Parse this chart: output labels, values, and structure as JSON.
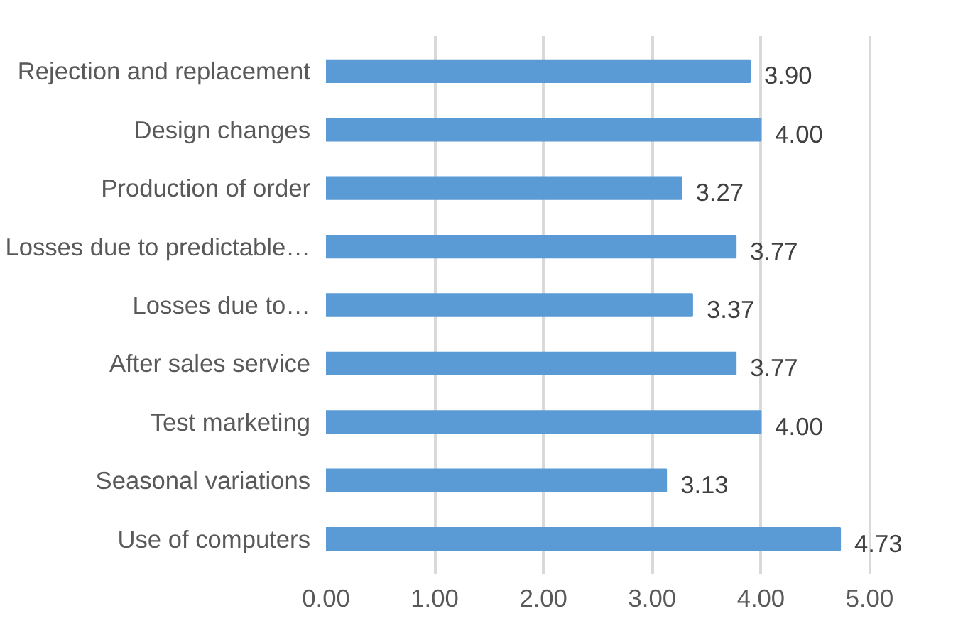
{
  "chart_data": {
    "type": "bar",
    "orientation": "horizontal",
    "categories": [
      "Rejection and replacement",
      "Design changes",
      "Production of order",
      "Losses due to predictable…",
      "Losses due to…",
      "After sales service",
      "Test marketing",
      "Seasonal variations",
      "Use of computers"
    ],
    "values": [
      3.9,
      4.0,
      3.27,
      3.77,
      3.37,
      3.77,
      4.0,
      3.13,
      4.73
    ],
    "value_labels": [
      "3.90",
      "4.00",
      "3.27",
      "3.77",
      "3.37",
      "3.77",
      "4.00",
      "3.13",
      "4.73"
    ],
    "color": "#5b9bd5",
    "xlim": [
      0,
      5
    ],
    "xticks": [
      {
        "value": 0,
        "label": "0.00"
      },
      {
        "value": 1,
        "label": "1.00"
      },
      {
        "value": 2,
        "label": "2.00"
      },
      {
        "value": 3,
        "label": "3.00"
      },
      {
        "value": 4,
        "label": "4.00"
      },
      {
        "value": 5,
        "label": "5.00"
      }
    ],
    "grid": "x"
  }
}
